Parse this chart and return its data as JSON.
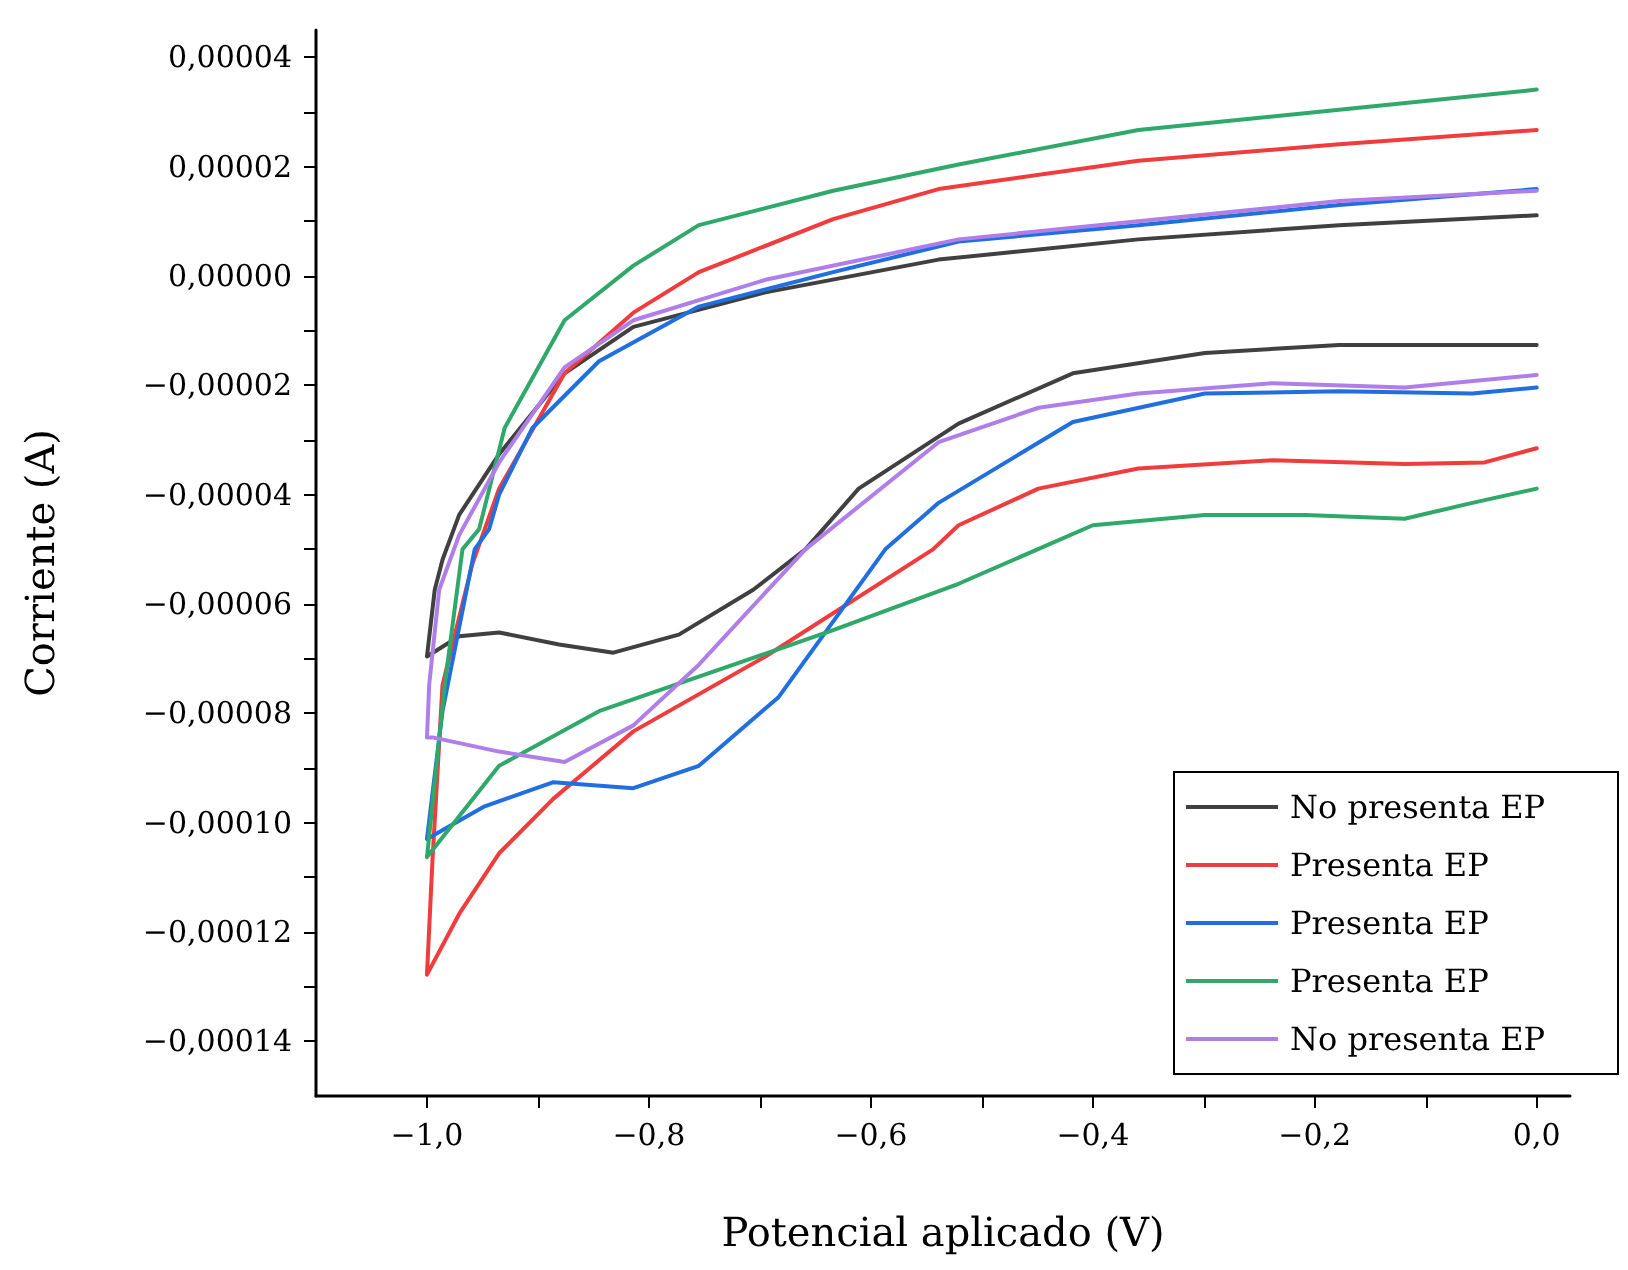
{
  "chart_data": {
    "type": "line",
    "xlabel": "Potencial aplicado (V)",
    "ylabel": "Corriente (A)",
    "xlim": [
      -1.1,
      0.03
    ],
    "ylim": [
      -0.00015,
      4.5e-05
    ],
    "xticks": [
      {
        "value": -1.0,
        "label": "−1,0"
      },
      {
        "value": -0.9,
        "label": null
      },
      {
        "value": -0.8,
        "label": "−0,8"
      },
      {
        "value": -0.7,
        "label": null
      },
      {
        "value": -0.6,
        "label": "−0,6"
      },
      {
        "value": -0.5,
        "label": null
      },
      {
        "value": -0.4,
        "label": "−0,4"
      },
      {
        "value": -0.3,
        "label": null
      },
      {
        "value": -0.2,
        "label": "−0,2"
      },
      {
        "value": -0.1,
        "label": null
      },
      {
        "value": 0.0,
        "label": "0,0"
      }
    ],
    "yticks": [
      {
        "value": -0.00014,
        "label": "−0,00014"
      },
      {
        "value": -0.00013,
        "label": null
      },
      {
        "value": -0.00012,
        "label": "−0,00012"
      },
      {
        "value": -0.00011,
        "label": null
      },
      {
        "value": -0.0001,
        "label": "−0,00010"
      },
      {
        "value": -9e-05,
        "label": null
      },
      {
        "value": -8e-05,
        "label": "−0,00008"
      },
      {
        "value": -7e-05,
        "label": null
      },
      {
        "value": -6e-05,
        "label": "−0,00006"
      },
      {
        "value": -5e-05,
        "label": null
      },
      {
        "value": -4e-05,
        "label": "−0,00004"
      },
      {
        "value": -3e-05,
        "label": null
      },
      {
        "value": -2e-05,
        "label": "−0,00002"
      },
      {
        "value": -1e-05,
        "label": null
      },
      {
        "value": 0.0,
        "label": "0,00000"
      },
      {
        "value": 1e-05,
        "label": null
      },
      {
        "value": 2e-05,
        "label": "0,00002"
      },
      {
        "value": 3e-05,
        "label": null
      },
      {
        "value": 4e-05,
        "label": "0,00004"
      }
    ],
    "grid": false,
    "legend": "bottom right",
    "marker": "none",
    "line_style": "solid",
    "series": [
      {
        "name": "No presenta EP",
        "color": "#404040",
        "x": [
          0.0,
          -0.178,
          -0.299,
          -0.418,
          -0.521,
          -0.611,
          -0.659,
          -0.706,
          -0.773,
          -0.832,
          -0.881,
          -0.935,
          -0.971,
          -1.0,
          -0.993,
          -0.986,
          -0.971,
          -0.935,
          -0.876,
          -0.814,
          -0.695,
          -0.539,
          -0.359,
          -0.178,
          0.0
        ],
        "values": [
          -1.26e-05,
          -1.26e-05,
          -1.41e-05,
          -1.78e-05,
          -2.7e-05,
          -3.89e-05,
          -5e-05,
          -5.74e-05,
          -6.56e-05,
          -6.89e-05,
          -6.74e-05,
          -6.52e-05,
          -6.59e-05,
          -6.96e-05,
          -5.74e-05,
          -5.19e-05,
          -4.37e-05,
          -3.26e-05,
          -1.78e-05,
          -9.3e-06,
          -3e-06,
          3e-06,
          6.7e-06,
          9.3e-06,
          1.11e-05
        ]
      },
      {
        "name": "Presenta EP",
        "color": "#f03c3c",
        "x": [
          0.0,
          -0.047,
          -0.119,
          -0.238,
          -0.359,
          -0.449,
          -0.521,
          -0.544,
          -0.695,
          -0.814,
          -0.886,
          -0.935,
          -0.971,
          -1.0,
          -0.995,
          -0.986,
          -0.959,
          -0.935,
          -0.876,
          -0.814,
          -0.755,
          -0.634,
          -0.539,
          -0.359,
          -0.178,
          0.0
        ],
        "values": [
          -3.15e-05,
          -3.41e-05,
          -3.44e-05,
          -3.37e-05,
          -3.52e-05,
          -3.89e-05,
          -4.56e-05,
          -5e-05,
          -6.96e-05,
          -8.33e-05,
          -9.56e-05,
          -0.0001056,
          -0.0001167,
          -0.0001278,
          -0.0001067,
          -7.48e-05,
          -5.26e-05,
          -3.89e-05,
          -1.78e-05,
          -6.7e-06,
          7e-07,
          1.04e-05,
          1.59e-05,
          2.11e-05,
          2.41e-05,
          2.67e-05
        ]
      },
      {
        "name": "Presenta EP",
        "color": "#1f6fe0",
        "x": [
          0.0,
          -0.058,
          -0.178,
          -0.299,
          -0.418,
          -0.539,
          -0.587,
          -0.683,
          -0.755,
          -0.814,
          -0.886,
          -0.948,
          -1.0,
          -0.986,
          -0.957,
          -0.944,
          -0.935,
          -0.905,
          -0.845,
          -0.755,
          -0.634,
          -0.521,
          -0.359,
          -0.178,
          0.0
        ],
        "values": [
          -2.04e-05,
          -2.15e-05,
          -2.11e-05,
          -2.15e-05,
          -2.67e-05,
          -4.15e-05,
          -5e-05,
          -7.7e-05,
          -8.96e-05,
          -9.37e-05,
          -9.26e-05,
          -9.7e-05,
          -0.000103,
          -7.96e-05,
          -5e-05,
          -4.63e-05,
          -4e-05,
          -2.78e-05,
          -1.56e-05,
          -5.6e-06,
          7e-07,
          6.3e-06,
          9.3e-06,
          1.3e-05,
          1.59e-05
        ]
      },
      {
        "name": "Presenta EP",
        "color": "#2fa86a",
        "x": [
          0.0,
          -0.058,
          -0.119,
          -0.209,
          -0.299,
          -0.4,
          -0.521,
          -0.634,
          -0.755,
          -0.845,
          -0.935,
          -1.0,
          -0.984,
          -0.968,
          -0.953,
          -0.93,
          -0.876,
          -0.814,
          -0.755,
          -0.634,
          -0.521,
          -0.359,
          -0.178,
          0.0
        ],
        "values": [
          -3.89e-05,
          -4.15e-05,
          -4.44e-05,
          -4.37e-05,
          -4.37e-05,
          -4.56e-05,
          -5.63e-05,
          -6.48e-05,
          -7.33e-05,
          -7.96e-05,
          -8.96e-05,
          -0.0001063,
          -7.48e-05,
          -5e-05,
          -4.63e-05,
          -2.78e-05,
          -8.1e-06,
          1.9e-06,
          9.3e-06,
          1.56e-05,
          2.04e-05,
          2.67e-05,
          3.04e-05,
          3.41e-05
        ]
      },
      {
        "name": "No presenta EP",
        "color": "#b07ee8",
        "x": [
          0.0,
          -0.119,
          -0.238,
          -0.359,
          -0.449,
          -0.539,
          -0.659,
          -0.755,
          -0.814,
          -0.876,
          -0.935,
          -0.995,
          -1.0,
          -0.998,
          -0.989,
          -0.971,
          -0.935,
          -0.876,
          -0.814,
          -0.695,
          -0.521,
          -0.359,
          -0.178,
          0.0
        ],
        "values": [
          -1.81e-05,
          -2.04e-05,
          -1.96e-05,
          -2.15e-05,
          -2.41e-05,
          -3.04e-05,
          -5e-05,
          -7.11e-05,
          -8.22e-05,
          -8.89e-05,
          -8.7e-05,
          -8.44e-05,
          -8.44e-05,
          -7.48e-05,
          -5.74e-05,
          -4.74e-05,
          -3.41e-05,
          -1.67e-05,
          -8.1e-06,
          -7e-07,
          6.7e-06,
          1e-05,
          1.37e-05,
          1.56e-05
        ]
      }
    ]
  }
}
